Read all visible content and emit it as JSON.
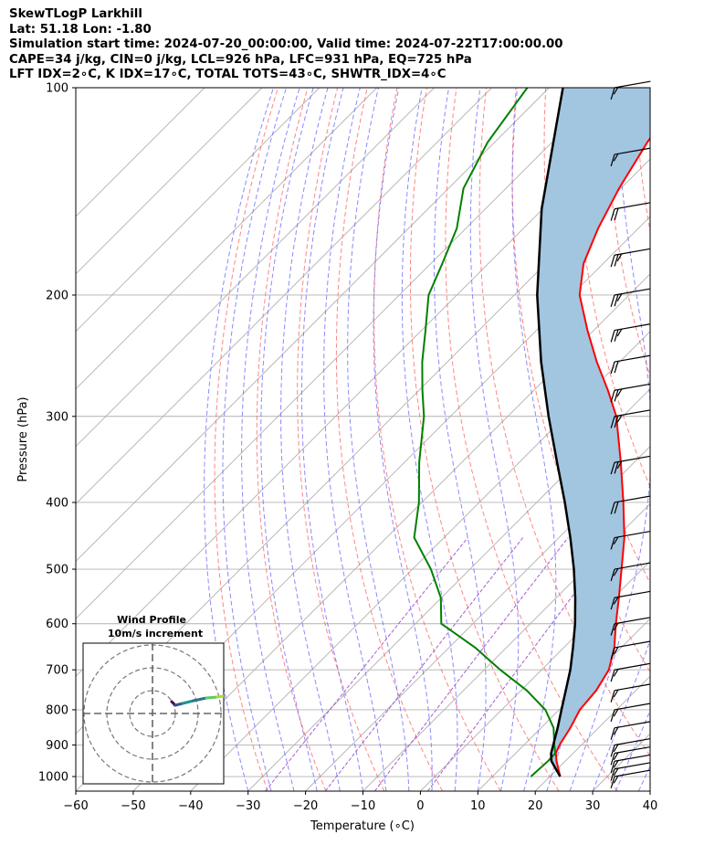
{
  "header": {
    "line1": "SkewTLogP Larkhill",
    "line2": "Lat: 51.18   Lon: -1.80",
    "line3": "Simulation start time: 2024-07-20_00:00:00, Valid time: 2024-07-22T17:00:00.00",
    "line4": "CAPE=34 j/kg, CIN=0 j/kg, LCL=926 hPa, LFC=931 hPa, EQ=725 hPa",
    "line5": "LFT IDX=2∘C, K IDX=17∘C, TOTAL TOTS=43∘C, SHWTR_IDX=4∘C"
  },
  "chart_data": {
    "type": "skewt",
    "xlabel": "Temperature (∘C)",
    "ylabel": "Pressure (hPa)",
    "xlim": [
      -60,
      40
    ],
    "ylim": [
      1050,
      100
    ],
    "x_ticks": [
      "−60",
      "−50",
      "−40",
      "−30",
      "−20",
      "−10",
      "0",
      "10",
      "20",
      "30",
      "40"
    ],
    "x_tick_values": [
      -60,
      -50,
      -40,
      -30,
      -20,
      -10,
      0,
      10,
      20,
      30,
      40
    ],
    "y_ticks": [
      "100",
      "200",
      "300",
      "400",
      "500",
      "600",
      "700",
      "800",
      "900",
      "1000"
    ],
    "y_tick_values": [
      100,
      200,
      300,
      400,
      500,
      600,
      700,
      800,
      900,
      1000
    ],
    "grid": true,
    "colors": {
      "temperature": "#ff0000",
      "dewpoint": "#008000",
      "parcel": "#000000",
      "cape_fill": "#a2c5e0",
      "dry_adiabat": "#ff6666",
      "moist_adiabat": "#6b6bff",
      "mixing_ratio": "#9b4dcc",
      "isotherm": "#b0b0b0"
    },
    "temperature_profile": {
      "pressure": [
        1000,
        950,
        925,
        900,
        850,
        800,
        750,
        700,
        650,
        600,
        550,
        500,
        450,
        400,
        350,
        300,
        275,
        250,
        225,
        200,
        180,
        160,
        140,
        120,
        100
      ],
      "temp": [
        21.8,
        18.5,
        17.0,
        16.2,
        15.1,
        13.6,
        13.1,
        11.7,
        8.8,
        4.9,
        0.9,
        -3.6,
        -8.6,
        -14.9,
        -22.3,
        -31.1,
        -37.1,
        -44.0,
        -51.1,
        -58.6,
        -63.4,
        -67.0,
        -70.3,
        -73.4,
        -76.3
      ]
    },
    "dewpoint_profile": {
      "pressure": [
        1000,
        950,
        925,
        900,
        850,
        800,
        750,
        700,
        650,
        600,
        550,
        500,
        450,
        400,
        350,
        300,
        275,
        250,
        225,
        200,
        180,
        160,
        140,
        120,
        100
      ],
      "dewpt": [
        16.7,
        17.0,
        16.9,
        15.3,
        12.2,
        7.6,
        1.0,
        -7.2,
        -15.4,
        -25.5,
        -30.1,
        -36.8,
        -45.2,
        -50.5,
        -57.4,
        -64.6,
        -69.4,
        -74.4,
        -79.3,
        -84.9,
        -88.0,
        -91.6,
        -97.4,
        -101.2,
        -103.8
      ]
    },
    "parcel_profile": {
      "pressure": [
        1000,
        950,
        926,
        900,
        850,
        800,
        750,
        700,
        650,
        600,
        550,
        500,
        450,
        400,
        350,
        300,
        250,
        200,
        150,
        100
      ],
      "temp": [
        21.8,
        17.6,
        16.2,
        15.1,
        12.9,
        10.4,
        7.8,
        5.0,
        1.6,
        -2.2,
        -6.7,
        -11.9,
        -18.0,
        -25.1,
        -33.4,
        -42.9,
        -53.7,
        -66.0,
        -80.2,
        -97.6
      ]
    },
    "wind_barbs": {
      "pressure": [
        1000,
        975,
        950,
        925,
        900,
        850,
        800,
        750,
        700,
        650,
        600,
        550,
        500,
        450,
        400,
        350,
        300,
        275,
        250,
        225,
        200,
        175,
        150,
        125,
        100
      ],
      "speed_kt": [
        15,
        15,
        15,
        15,
        15,
        15,
        15,
        15,
        15,
        15,
        15,
        15,
        15,
        15,
        20,
        25,
        25,
        25,
        20,
        25,
        25,
        25,
        20,
        15,
        15
      ],
      "direction_deg": [
        260,
        260,
        260,
        260,
        260,
        260,
        260,
        260,
        260,
        260,
        260,
        260,
        260,
        260,
        260,
        260,
        260,
        260,
        260,
        260,
        260,
        260,
        260,
        260,
        260
      ]
    },
    "inset": {
      "title": "Wind Profile",
      "subtitle": "10m/s increment",
      "rings": 3
    }
  }
}
